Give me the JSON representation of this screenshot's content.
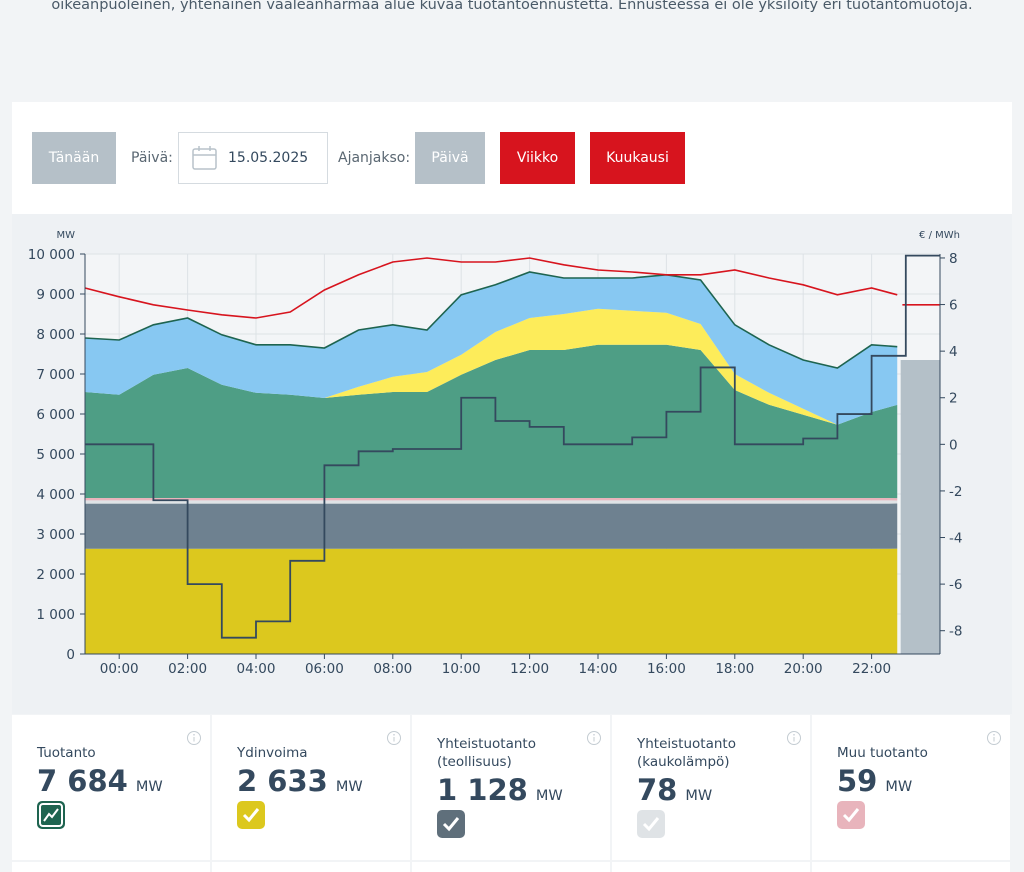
{
  "intro": "oikeanpuoleinen, yhtenäinen vaaleanharmaa alue kuvaa tuotantoennustetta. Ennusteessa ei ole yksilöity eri tuotantomuotoja.",
  "controls": {
    "today": "Tänään",
    "date_label": "Päivä:",
    "date": "15.05.2025",
    "period_label": "Ajanjakso:",
    "periods": [
      "Päivä",
      "Viikko",
      "Kuukausi"
    ]
  },
  "chart_data": {
    "type": "area",
    "y_label": "MW",
    "y2_label": "€ / MWh",
    "x": [
      -1,
      0,
      1,
      2,
      3,
      4,
      5,
      6,
      7,
      8,
      9,
      10,
      11,
      12,
      13,
      14,
      15,
      16,
      17,
      18,
      19,
      20,
      21,
      22,
      22.75
    ],
    "xlim": [
      -1,
      24
    ],
    "xticks": [
      {
        "value": 0,
        "label": "00:00"
      },
      {
        "value": 2,
        "label": "02:00"
      },
      {
        "value": 4,
        "label": "04:00"
      },
      {
        "value": 6,
        "label": "06:00"
      },
      {
        "value": 8,
        "label": "08:00"
      },
      {
        "value": 10,
        "label": "10:00"
      },
      {
        "value": 12,
        "label": "12:00"
      },
      {
        "value": 14,
        "label": "14:00"
      },
      {
        "value": 16,
        "label": "16:00"
      },
      {
        "value": 18,
        "label": "18:00"
      },
      {
        "value": 20,
        "label": "20:00"
      },
      {
        "value": 22,
        "label": "22:00"
      }
    ],
    "ylim": [
      0,
      10000
    ],
    "yticks": [
      0,
      {
        "value": 1000,
        "label": "1 000"
      },
      {
        "value": 2000,
        "label": "2 000"
      },
      {
        "value": 3000,
        "label": "3 000"
      },
      {
        "value": 4000,
        "label": "4 000"
      },
      {
        "value": 5000,
        "label": "5 000"
      },
      {
        "value": 6000,
        "label": "6 000"
      },
      {
        "value": 7000,
        "label": "7 000"
      },
      {
        "value": 8000,
        "label": "8 000"
      },
      {
        "value": 9000,
        "label": "9 000"
      },
      {
        "value": 10000,
        "label": "10 000"
      }
    ],
    "y2lim": [
      -9,
      8.17
    ],
    "y2ticks": [
      8,
      6,
      4,
      2,
      0,
      -2,
      -4,
      -6,
      -8
    ],
    "grid": true,
    "series": [
      {
        "name": "Ydinvoima",
        "mark": "stack",
        "color": "#dcc81e",
        "values": [
          2630,
          2630,
          2630,
          2630,
          2630,
          2630,
          2630,
          2630,
          2630,
          2630,
          2630,
          2630,
          2630,
          2630,
          2630,
          2630,
          2630,
          2630,
          2630,
          2630,
          2630,
          2630,
          2630,
          2630,
          2633
        ]
      },
      {
        "name": "Yhteistuotanto (teollisuus)",
        "mark": "stack",
        "color": "#6e8190",
        "values": [
          1130,
          1130,
          1130,
          1130,
          1130,
          1130,
          1130,
          1130,
          1130,
          1130,
          1130,
          1130,
          1130,
          1130,
          1130,
          1130,
          1130,
          1130,
          1130,
          1130,
          1130,
          1130,
          1130,
          1130,
          1128
        ]
      },
      {
        "name": "Yhteistuotanto (kaukolämpö)",
        "mark": "stack",
        "color": "#dfe3e6",
        "values": [
          80,
          80,
          80,
          80,
          80,
          80,
          80,
          80,
          80,
          80,
          80,
          80,
          80,
          80,
          80,
          80,
          80,
          80,
          80,
          80,
          80,
          80,
          80,
          80,
          78
        ]
      },
      {
        "name": "Muu tuotanto",
        "mark": "stack",
        "color": "#e8b4bc",
        "values": [
          60,
          60,
          60,
          60,
          60,
          60,
          60,
          60,
          60,
          60,
          60,
          60,
          60,
          60,
          60,
          60,
          60,
          60,
          60,
          60,
          60,
          60,
          60,
          60,
          59
        ]
      },
      {
        "mark": "stack",
        "color": "#4e9e85",
        "values": [
          2650,
          2580,
          3080,
          3250,
          2830,
          2630,
          2580,
          2500,
          2580,
          2650,
          2650,
          3080,
          3450,
          3700,
          3700,
          3830,
          3830,
          3830,
          3700,
          2700,
          2330,
          2080,
          1830,
          2150,
          2330
        ]
      },
      {
        "mark": "stack",
        "color": "#fdec5a",
        "values": [
          0,
          0,
          0,
          0,
          0,
          0,
          0,
          0,
          200,
          380,
          500,
          500,
          700,
          800,
          900,
          900,
          850,
          800,
          650,
          400,
          300,
          150,
          0,
          0,
          0
        ]
      },
      {
        "mark": "stack",
        "color": "#87c8f2",
        "values": [
          1350,
          1370,
          1250,
          1250,
          1250,
          1200,
          1250,
          1250,
          1420,
          1300,
          1050,
          1500,
          1180,
          1150,
          900,
          770,
          820,
          950,
          1100,
          1230,
          1200,
          1220,
          1420,
          1680,
          1460
        ]
      },
      {
        "mark": "line",
        "color": "#1e6450",
        "values": [
          7900,
          7850,
          8230,
          8400,
          7980,
          7730,
          7730,
          7650,
          8100,
          8230,
          8100,
          8980,
          9230,
          9550,
          9400,
          9400,
          9400,
          9480,
          9350,
          8230,
          7730,
          7350,
          7150,
          7730,
          7684
        ]
      },
      {
        "mark": "line",
        "color": "#d7141e",
        "values": [
          9150,
          8930,
          8730,
          8600,
          8480,
          8400,
          8550,
          9100,
          9480,
          9800,
          9900,
          9800,
          9800,
          9900,
          9730,
          9600,
          9550,
          9480,
          9480,
          9600,
          9400,
          9230,
          8980,
          9150,
          8980
        ]
      },
      {
        "mark": "forecast",
        "color": "#b4c0c8",
        "x": [
          22.85,
          24
        ],
        "values": [
          7350,
          7350
        ]
      },
      {
        "mark": "line",
        "color": "#d7141e",
        "x": [
          22.9,
          24
        ],
        "values": [
          8730,
          8730
        ]
      },
      {
        "mark": "step",
        "axis": "y2",
        "color": "#34495e",
        "x": [
          -1,
          1,
          2,
          3,
          4,
          5,
          6,
          7,
          8,
          10,
          11,
          12,
          13,
          15,
          16,
          17,
          18,
          20,
          21,
          22,
          23
        ],
        "values": [
          0,
          -2.4,
          -6,
          -8.3,
          -7.6,
          -5,
          -0.9,
          -0.3,
          -0.2,
          2,
          1,
          0.75,
          0,
          0.3,
          1.4,
          3.3,
          0,
          0.25,
          1.3,
          3.8,
          8.1
        ]
      }
    ]
  },
  "cards": [
    {
      "title": "Tuotanto",
      "value": "7 684",
      "unit": "MW",
      "color": "#1e6450",
      "icon": "chart"
    },
    {
      "title": "Ydinvoima",
      "value": "2 633",
      "unit": "MW",
      "color": "#dcc81e",
      "icon": "check"
    },
    {
      "title": "Yhteistuotanto (teollisuus)",
      "value": "1 128",
      "unit": "MW",
      "color": "#5f6f7b",
      "icon": "check"
    },
    {
      "title": "Yhteistuotanto (kaukolämpö)",
      "value": "78",
      "unit": "MW",
      "color": "#dfe3e6",
      "icon": "check"
    },
    {
      "title": "Muu tuotanto",
      "value": "59",
      "unit": "MW",
      "color": "#e8b4bc",
      "icon": "check"
    }
  ]
}
